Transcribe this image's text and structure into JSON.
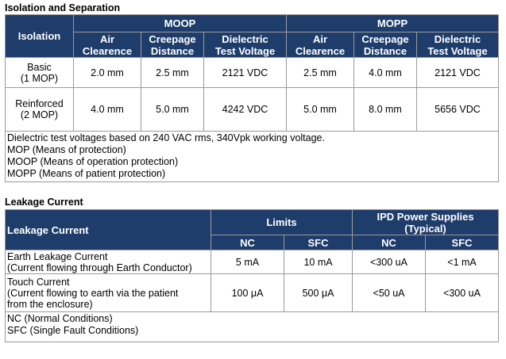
{
  "isolation": {
    "title": "Isolation and Separation",
    "header": {
      "isolation": "Isolation",
      "moop": "MOOP",
      "mopp": "MOPP",
      "air": [
        "Air",
        "Clearence"
      ],
      "creep": [
        "Creepage",
        "Distance"
      ],
      "diel": [
        "Dielectric",
        "Test Voltage"
      ]
    },
    "rows": [
      {
        "label": [
          "Basic",
          "(1 MOP)"
        ],
        "moop_air": "2.0 mm",
        "moop_creep": "2.5 mm",
        "moop_diel": "2121 VDC",
        "mopp_air": "2.5 mm",
        "mopp_creep": "4.0 mm",
        "mopp_diel": "2121 VDC"
      },
      {
        "label": [
          "Reinforced",
          "(2 MOP)"
        ],
        "moop_air": "4.0 mm",
        "moop_creep": "5.0 mm",
        "moop_diel": "4242 VDC",
        "mopp_air": "5.0 mm",
        "mopp_creep": "8.0 mm",
        "mopp_diel": "5656 VDC"
      }
    ],
    "notes": [
      "Dielectric test voltages based on 240 VAC rms, 340Vpk working voltage.",
      "MOP (Means of protection)",
      "MOOP (Means  of operation protection)",
      "MOPP (Means of patient protection)"
    ]
  },
  "leakage": {
    "title": "Leakage Current",
    "header": {
      "label": "Leakage Current",
      "limits": "Limits",
      "ipd": [
        "IPD Power Supplies",
        "(Typical)"
      ],
      "nc": "NC",
      "sfc": "SFC"
    },
    "rows": [
      {
        "label": [
          "Earth Leakage Current",
          "(Current  flowing through Earth Conductor)"
        ],
        "lim_nc": "5 mA",
        "lim_sfc": "10 mA",
        "ipd_nc": "<300 uA",
        "ipd_sfc": "<1 mA"
      },
      {
        "label": [
          "Touch Current",
          "(Current  flowing to earth via the patient",
          "from the enclosure)"
        ],
        "lim_nc": "100 μA",
        "lim_sfc": "500 μA",
        "ipd_nc": "<50 uA",
        "ipd_sfc": "<300 uA"
      }
    ],
    "notes": [
      "NC (Normal Conditions)",
      "SFC (Single Fault Conditions)"
    ]
  }
}
